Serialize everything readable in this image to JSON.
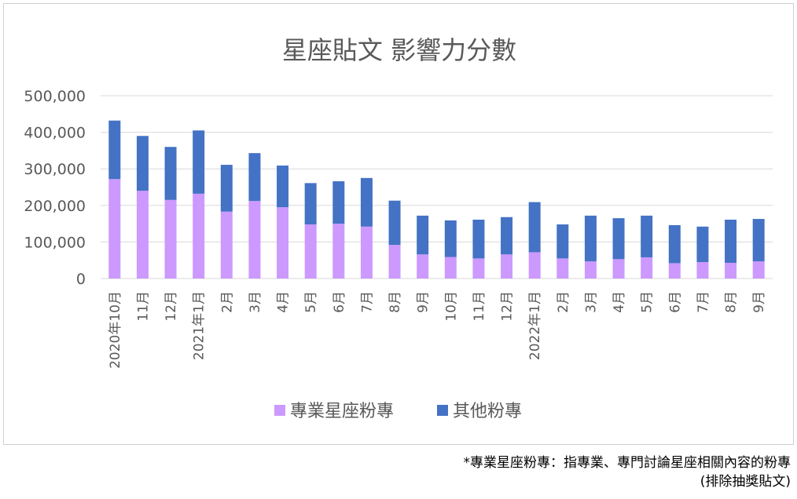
{
  "chart_data": {
    "type": "bar",
    "stacked": true,
    "title": "星座貼文 影響力分數",
    "categories": [
      "2020年10月",
      "11月",
      "12月",
      "2021年1月",
      "2月",
      "3月",
      "4月",
      "5月",
      "6月",
      "7月",
      "8月",
      "9月",
      "10月",
      "11月",
      "12月",
      "2022年1月",
      "2月",
      "3月",
      "4月",
      "5月",
      "6月",
      "7月",
      "8月",
      "9月"
    ],
    "series": [
      {
        "name": "專業星座粉專",
        "color": "#cc99ff",
        "values": [
          272000,
          240000,
          215000,
          232000,
          183000,
          212000,
          195000,
          148000,
          150000,
          142000,
          92000,
          66000,
          59000,
          55000,
          66000,
          72000,
          55000,
          47000,
          53000,
          58000,
          42000,
          45000,
          43000,
          47000
        ]
      },
      {
        "name": "其他粉專",
        "color": "#4472c4",
        "values": [
          160000,
          150000,
          145000,
          173000,
          128000,
          131000,
          114000,
          113000,
          116000,
          133000,
          121000,
          106000,
          100000,
          106000,
          102000,
          137000,
          93000,
          125000,
          112000,
          114000,
          104000,
          97000,
          118000,
          116000
        ]
      }
    ],
    "ylim": [
      0,
      500000
    ],
    "yticks": [
      0,
      100000,
      200000,
      300000,
      400000,
      500000
    ],
    "ytick_labels": [
      "0",
      "100,000",
      "200,000",
      "300,000",
      "400,000",
      "500,000"
    ],
    "grid": true,
    "legend_position": "bottom"
  },
  "footnote": {
    "line1": "*專業星座粉專：指專業、專門討論星座相關內容的粉專",
    "line2": "(排除抽獎貼文)"
  }
}
